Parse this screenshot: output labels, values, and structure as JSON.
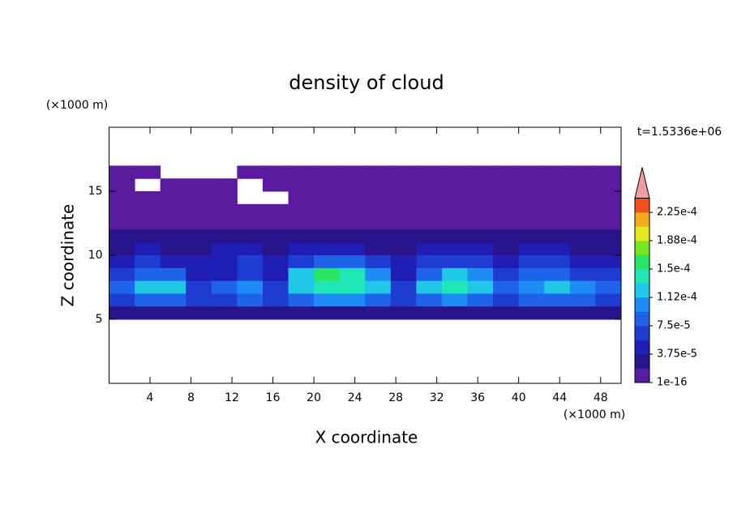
{
  "chart_data": {
    "type": "contour",
    "title": "density of cloud",
    "x_label": "X coordinate",
    "y_label": "Z coordinate",
    "x_unit": "(×1000 m)",
    "y_unit": "(×1000 m)",
    "annotation": "t=1.5336e+06",
    "xlim": [
      0,
      50
    ],
    "ylim": [
      0,
      20
    ],
    "xticks": [
      4,
      8,
      12,
      16,
      20,
      24,
      28,
      32,
      36,
      40,
      44,
      48
    ],
    "yticks": [
      5,
      10,
      15
    ],
    "levels": [
      1e-16,
      {
        "value": 3.75e-05,
        "label": "3.75e-5"
      },
      {
        "value": 7.5e-05,
        "label": "7.5e-5"
      },
      {
        "value": 0.0001125,
        "label": "1.12e-4"
      },
      {
        "value": 0.00015,
        "label": "1.5e-4"
      },
      {
        "value": 0.0001875,
        "label": "1.88e-4"
      },
      {
        "value": 0.000225,
        "label": "2.25e-4"
      }
    ],
    "colors": [
      "#5a1aa0",
      "#28148c",
      "#1e1eb4",
      "#1e3cd2",
      "#1e64eb",
      "#1e8cf5",
      "#1ec8e6",
      "#1ee6b4",
      "#28e664",
      "#78e61e",
      "#e6e61e",
      "#f5aa1e",
      "#f0501e"
    ],
    "extend_color": "#f0a0a0",
    "x": [
      1.25,
      3.75,
      6.25,
      8.75,
      11.25,
      13.75,
      16.25,
      18.75,
      21.25,
      23.75,
      26.25,
      28.75,
      31.25,
      33.75,
      36.25,
      38.75,
      41.25,
      43.75,
      46.25,
      48.75
    ],
    "y": [
      16.5,
      15.5,
      14.5,
      13.5,
      12.5,
      11.5,
      10.5,
      9.5,
      8.5,
      7.5,
      6.5,
      5.5
    ],
    "z": [
      [
        1e-06,
        1e-06,
        null,
        null,
        null,
        1e-06,
        1e-06,
        1e-06,
        1e-06,
        1e-06,
        1e-06,
        1e-06,
        1e-06,
        1e-06,
        1e-06,
        1e-06,
        1e-06,
        1e-06,
        1e-06,
        1e-06
      ],
      [
        1e-06,
        null,
        1e-06,
        1e-06,
        1e-06,
        null,
        1e-06,
        1e-06,
        1e-06,
        1e-06,
        1e-06,
        1e-06,
        1e-06,
        1e-06,
        1e-06,
        1e-06,
        1e-06,
        1e-06,
        1e-06,
        1e-06
      ],
      [
        1e-06,
        1e-06,
        1e-06,
        1e-06,
        1e-06,
        null,
        null,
        1e-06,
        1e-06,
        1e-06,
        1e-06,
        1e-06,
        1e-06,
        1e-06,
        1e-06,
        1e-06,
        1e-06,
        1e-06,
        1e-06,
        1e-06
      ],
      [
        1e-06,
        1e-06,
        1e-06,
        1e-06,
        1e-06,
        1e-06,
        1e-06,
        1e-06,
        1e-06,
        1e-06,
        1e-06,
        1e-06,
        1e-06,
        1e-06,
        1e-06,
        1e-06,
        1e-06,
        1e-06,
        1e-06,
        1e-06
      ],
      [
        1e-06,
        1e-06,
        1e-06,
        1e-06,
        1e-06,
        1e-06,
        1e-06,
        1e-06,
        1e-06,
        1e-06,
        1e-06,
        1e-06,
        1e-06,
        1e-06,
        1e-06,
        1e-06,
        1e-06,
        1e-06,
        1e-06,
        1e-06
      ],
      [
        2e-05,
        2e-05,
        2e-05,
        2e-05,
        2e-05,
        2e-05,
        2e-05,
        2e-05,
        2e-05,
        2e-05,
        2e-05,
        2e-05,
        2e-05,
        2e-05,
        2e-05,
        2e-05,
        2e-05,
        2e-05,
        2e-05,
        2e-05
      ],
      [
        3e-05,
        4e-05,
        3e-05,
        3e-05,
        4e-05,
        4e-05,
        3e-05,
        4e-05,
        4e-05,
        4e-05,
        3e-05,
        3e-05,
        4e-05,
        4e-05,
        4e-05,
        3e-05,
        4e-05,
        4e-05,
        3e-05,
        3e-05
      ],
      [
        5e-05,
        6e-05,
        5e-05,
        4e-05,
        5e-05,
        6e-05,
        5e-05,
        6e-05,
        8e-05,
        8e-05,
        6e-05,
        4e-05,
        6e-05,
        6e-05,
        6e-05,
        5e-05,
        6e-05,
        6e-05,
        5e-05,
        5e-05
      ],
      [
        6e-05,
        9e-05,
        8e-05,
        4e-05,
        5e-05,
        6e-05,
        5e-05,
        0.00012,
        0.00015,
        0.00014,
        0.00011,
        5e-05,
        9e-05,
        0.00012,
        0.00011,
        6e-05,
        8e-05,
        9e-05,
        7e-05,
        6e-05
      ],
      [
        8e-05,
        0.00012,
        0.00012,
        7e-05,
        8e-05,
        0.0001,
        6e-05,
        0.00013,
        0.00014,
        0.000135,
        0.00012,
        6e-05,
        0.00012,
        0.000135,
        0.00012,
        8e-05,
        0.00011,
        0.00012,
        0.0001,
        8e-05
      ],
      [
        7e-05,
        9e-05,
        9e-05,
        7e-05,
        7e-05,
        8e-05,
        6e-05,
        9e-05,
        0.0001,
        0.0001,
        9e-05,
        6e-05,
        9e-05,
        0.0001,
        9e-05,
        7e-05,
        8e-05,
        9e-05,
        8e-05,
        7e-05
      ],
      [
        2e-05,
        2e-05,
        2e-05,
        2e-05,
        2e-05,
        2e-05,
        2e-05,
        2e-05,
        2e-05,
        2e-05,
        2e-05,
        2e-05,
        2e-05,
        2e-05,
        2e-05,
        2e-05,
        2e-05,
        2e-05,
        2e-05,
        2e-05
      ]
    ]
  }
}
